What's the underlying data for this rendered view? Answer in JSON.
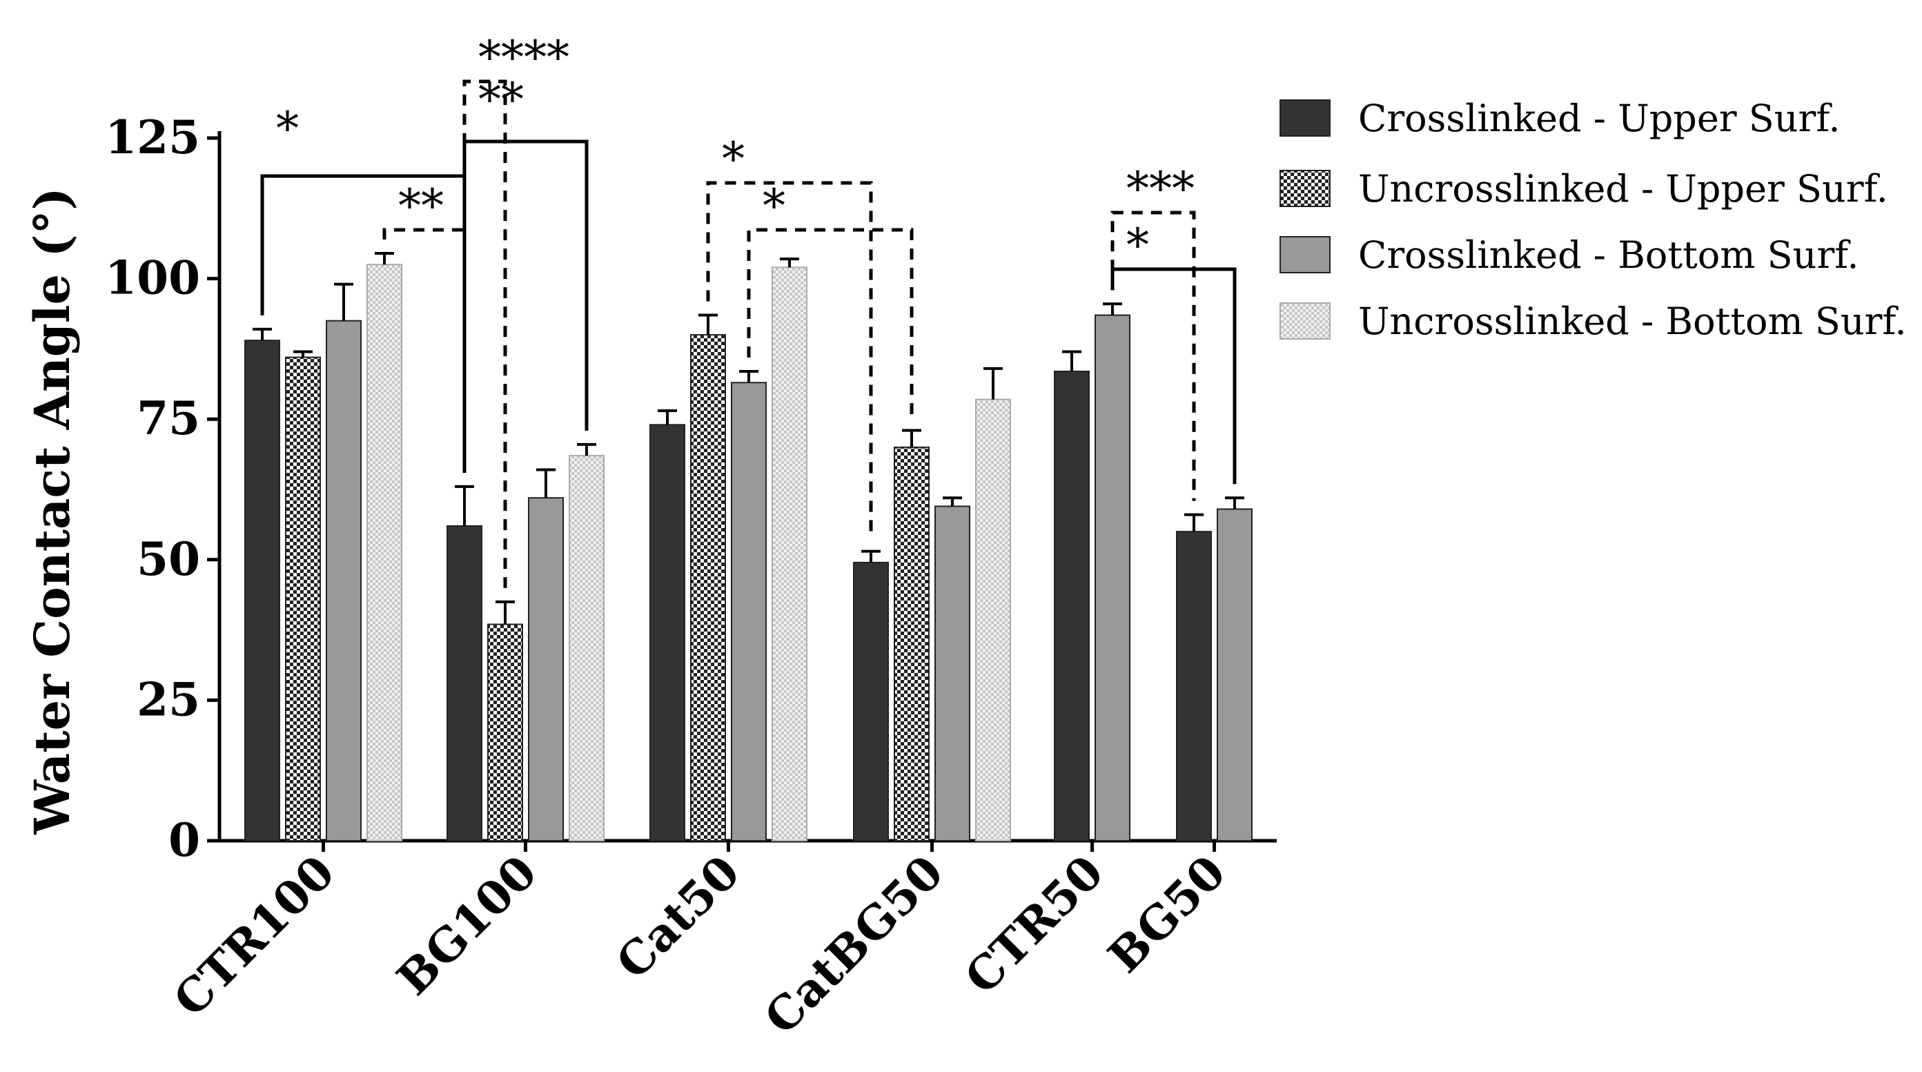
{
  "chart_data": {
    "type": "bar",
    "ylabel": "Water Contact Angle (°)",
    "ylim": [
      0,
      125
    ],
    "yticks": [
      0,
      25,
      50,
      75,
      100,
      125
    ],
    "categories": [
      "CTR100",
      "BG100",
      "Cat50",
      "CatBG50",
      "CTR50",
      "BG50"
    ],
    "series": [
      {
        "name": "Crosslinked - Upper Surf.",
        "color": "#333333",
        "pattern": "solid",
        "values": [
          89,
          56,
          74,
          49.5,
          83.5,
          55
        ],
        "errors": [
          2,
          7,
          2.5,
          2,
          3.5,
          3
        ]
      },
      {
        "name": "Uncrosslinked - Upper Surf.",
        "color": "#444444",
        "pattern": "checker",
        "values": [
          86,
          38.5,
          90,
          70,
          null,
          null
        ],
        "errors": [
          1,
          4,
          3.5,
          3,
          null,
          null
        ]
      },
      {
        "name": "Crosslinked - Bottom Surf.",
        "color": "#999999",
        "pattern": "solid",
        "values": [
          92.5,
          61,
          81.5,
          59.5,
          93.5,
          59
        ],
        "errors": [
          6.5,
          5,
          2,
          1.5,
          2,
          2
        ]
      },
      {
        "name": "Uncrosslinked - Bottom Surf.",
        "color": "#dddddd",
        "pattern": "dots",
        "values": [
          102.5,
          68.5,
          102,
          78.5,
          null,
          null
        ],
        "errors": [
          2,
          2,
          1.5,
          5.5,
          null,
          null
        ]
      }
    ],
    "significance": [
      {
        "label": "*",
        "from": [
          0,
          0
        ],
        "to": [
          1,
          0
        ],
        "style": "solid"
      },
      {
        "label": "**",
        "from": [
          0,
          3
        ],
        "to": [
          1,
          0
        ],
        "style": "dashed"
      },
      {
        "label": "**",
        "from": [
          1,
          0
        ],
        "to": [
          1,
          3
        ],
        "style": "solid"
      },
      {
        "label": "****",
        "from": [
          1,
          0
        ],
        "to": [
          1,
          1
        ],
        "style": "dashed"
      },
      {
        "label": "*",
        "from": [
          2,
          1
        ],
        "to": [
          3,
          0
        ],
        "style": "dashed"
      },
      {
        "label": "*",
        "from": [
          2,
          2
        ],
        "to": [
          3,
          1
        ],
        "style": "dashed"
      },
      {
        "label": "***",
        "from": [
          4,
          2
        ],
        "to": [
          5,
          0
        ],
        "style": "dashed"
      },
      {
        "label": "*",
        "from": [
          4,
          2
        ],
        "to": [
          5,
          2
        ],
        "style": "solid"
      }
    ]
  }
}
